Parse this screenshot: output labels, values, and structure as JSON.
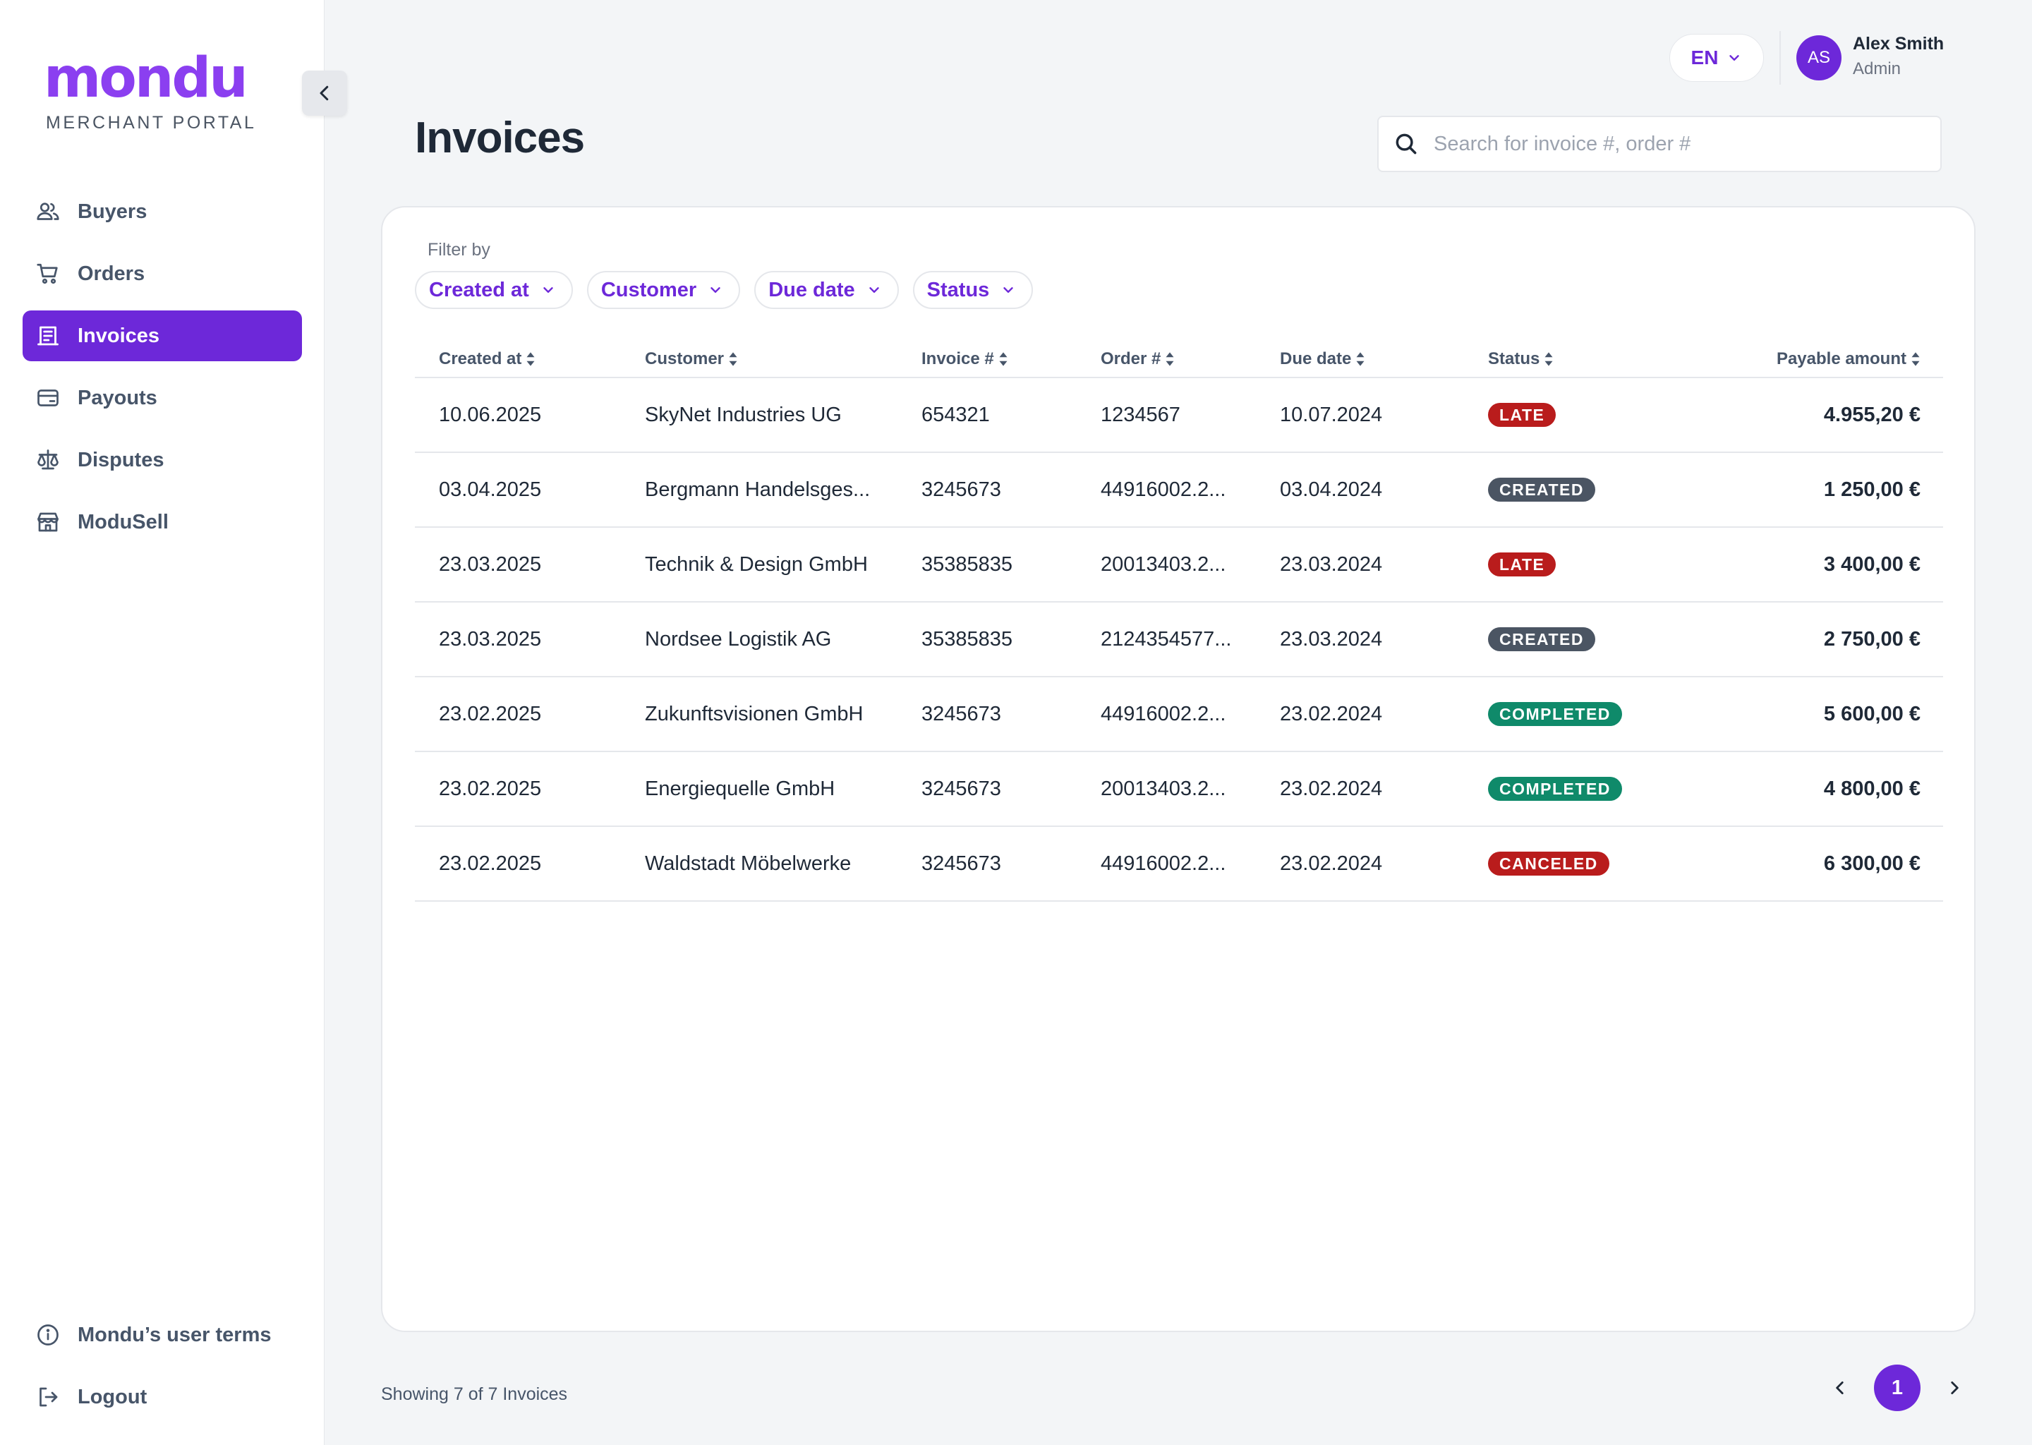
{
  "brand": {
    "name": "mondu",
    "subtitle": "MERCHANT PORTAL",
    "color": "#8b3ff0"
  },
  "sidebar": {
    "items": [
      {
        "label": "Buyers",
        "icon": "users-icon",
        "active": false
      },
      {
        "label": "Orders",
        "icon": "cart-icon",
        "active": false
      },
      {
        "label": "Invoices",
        "icon": "invoice-icon",
        "active": true
      },
      {
        "label": "Payouts",
        "icon": "wallet-icon",
        "active": false
      },
      {
        "label": "Disputes",
        "icon": "scale-icon",
        "active": false
      },
      {
        "label": "ModuSell",
        "icon": "store-icon",
        "active": false
      }
    ],
    "bottom_items": [
      {
        "label": "Mondu’s user terms",
        "icon": "info-icon"
      },
      {
        "label": "Logout",
        "icon": "logout-icon"
      }
    ]
  },
  "topbar": {
    "language": "EN",
    "user": {
      "initials": "AS",
      "name": "Alex Smith",
      "role": "Admin"
    }
  },
  "page": {
    "title": "Invoices",
    "search_placeholder": "Search for invoice #, order #"
  },
  "filters": {
    "label": "Filter by",
    "chips": [
      "Created at",
      "Customer",
      "Due date",
      "Status"
    ]
  },
  "table": {
    "headers": [
      "Created at",
      "Customer",
      "Invoice #",
      "Order #",
      "Due date",
      "Status",
      "Payable amount"
    ],
    "rows": [
      {
        "created_at": "10.06.2025",
        "customer": "SkyNet Industries UG",
        "invoice": "654321",
        "order": "1234567",
        "due_date": "10.07.2024",
        "status": "LATE",
        "amount": "4.955,20 €"
      },
      {
        "created_at": "03.04.2025",
        "customer": "Bergmann Handelsges...",
        "invoice": "3245673",
        "order": "44916002.2...",
        "due_date": "03.04.2024",
        "status": "CREATED",
        "amount": "1 250,00 €"
      },
      {
        "created_at": "23.03.2025",
        "customer": "Technik & Design GmbH",
        "invoice": "35385835",
        "order": "20013403.2...",
        "due_date": "23.03.2024",
        "status": "LATE",
        "amount": "3 400,00 €"
      },
      {
        "created_at": "23.03.2025",
        "customer": "Nordsee Logistik AG",
        "invoice": "35385835",
        "order": "2124354577...",
        "due_date": "23.03.2024",
        "status": "CREATED",
        "amount": "2 750,00 €"
      },
      {
        "created_at": "23.02.2025",
        "customer": "Zukunftsvisionen GmbH",
        "invoice": "3245673",
        "order": "44916002.2...",
        "due_date": "23.02.2024",
        "status": "COMPLETED",
        "amount": "5 600,00 €"
      },
      {
        "created_at": "23.02.2025",
        "customer": "Energiequelle GmbH",
        "invoice": "3245673",
        "order": "20013403.2...",
        "due_date": "23.02.2024",
        "status": "COMPLETED",
        "amount": "4 800,00 €"
      },
      {
        "created_at": "23.02.2025",
        "customer": "Waldstadt Möbelwerke",
        "invoice": "3245673",
        "order": "44916002.2...",
        "due_date": "23.02.2024",
        "status": "CANCELED",
        "amount": "6 300,00 €"
      }
    ]
  },
  "status_colors": {
    "LATE": "#b91c1c",
    "CREATED": "#4b5563",
    "COMPLETED": "#0f8a6a",
    "CANCELED": "#b91c1c"
  },
  "footer": {
    "showing": "Showing 7 of 7 Invoices",
    "current_page": "1"
  },
  "colors": {
    "accent": "#6d28d9",
    "background": "#f3f5f7"
  }
}
